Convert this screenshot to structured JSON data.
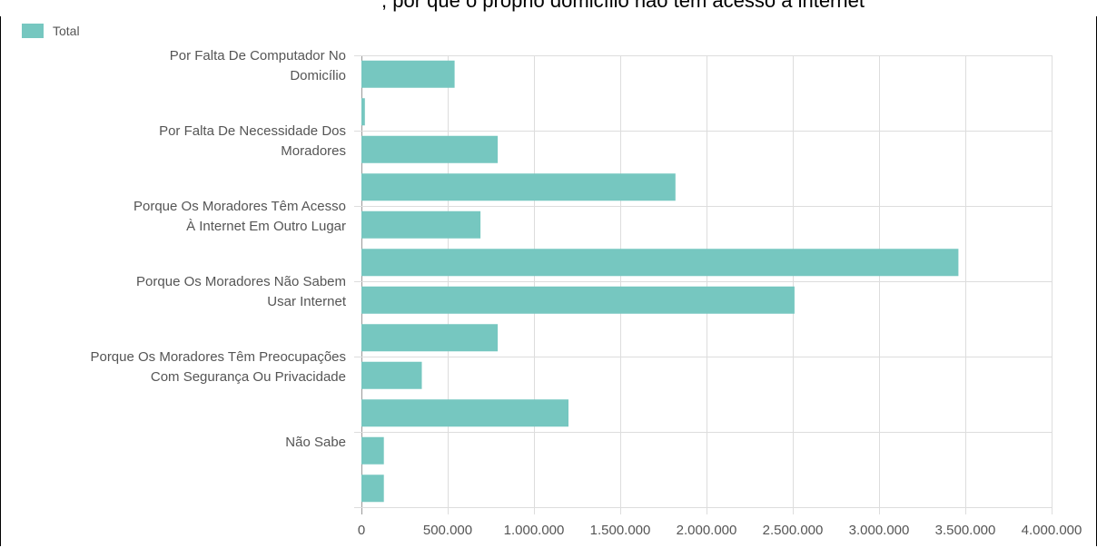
{
  "header": {
    "clipped_title": ", por que o próprio domicílio não tem acesso à internet"
  },
  "legend": {
    "label": "Total",
    "color": "#76c7c0",
    "icon": "legend-swatch"
  },
  "chart_data": {
    "type": "bar",
    "orientation": "horizontal",
    "xlim": [
      0,
      4000000
    ],
    "x_ticks": [
      0,
      500000,
      1000000,
      1500000,
      2000000,
      2500000,
      3000000,
      3500000,
      4000000
    ],
    "x_tick_labels": [
      "0",
      "500.000",
      "1.000.000",
      "1.500.000",
      "2.000.000",
      "2.500.000",
      "3.000.000",
      "3.500.000",
      "4.000.000"
    ],
    "category_labels": [
      [
        "Por Falta De Computador No",
        "Domicílio"
      ],
      [],
      [
        "Por Falta De Necessidade Dos",
        "Moradores"
      ],
      [],
      [
        "Porque Os Moradores Têm Acesso",
        "À Internet Em Outro Lugar"
      ],
      [],
      [
        "Porque Os Moradores Não Sabem",
        "Usar Internet"
      ],
      [],
      [
        "Porque Os Moradores Têm Preocupações",
        "Com Segurança Ou Privacidade"
      ],
      [],
      [
        "Não Sabe"
      ],
      []
    ],
    "bar_values": [
      540000,
      20000,
      790000,
      1820000,
      690000,
      3460000,
      2510000,
      790000,
      350000,
      1200000,
      130000,
      130000
    ],
    "series": [
      {
        "name": "Total",
        "values": [
          540000,
          20000,
          790000,
          1820000,
          690000,
          3460000,
          2510000,
          790000,
          350000,
          1200000,
          130000,
          130000
        ]
      }
    ],
    "grid": true,
    "legend_position": "top-left",
    "bar_color": "#76c7c0"
  }
}
